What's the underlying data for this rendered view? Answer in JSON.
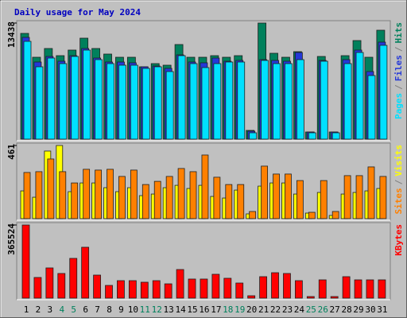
{
  "legend_separator": "/",
  "chart_data": [
    {
      "type": "bar",
      "title": "Daily usage for May 2024",
      "ylim": [
        0,
        13438
      ],
      "yticks": [
        13438
      ],
      "series": [
        {
          "name": "Hits",
          "color": "#00805c",
          "values": [
            12241,
            9480,
            10493,
            9664,
            10309,
            11689,
            10493,
            9848,
            9480,
            9480,
            8376,
            8744,
            8560,
            10953,
            9480,
            9480,
            9664,
            9480,
            9664,
            1012,
            13438,
            9940,
            9480,
            10125,
            828,
            9572,
            828,
            9664,
            11413,
            9480,
            12609
          ]
        },
        {
          "name": "Files",
          "color": "#2438d8",
          "values": [
            11781,
            8928,
            9572,
            9020,
            9664,
            10493,
            9388,
            8928,
            8928,
            8836,
            8376,
            8468,
            8192,
            9756,
            8928,
            8836,
            9388,
            9020,
            9112,
            920,
            9204,
            9112,
            9020,
            10033,
            828,
            9112,
            828,
            9204,
            10309,
            7824,
            11229
          ]
        },
        {
          "name": "Pages",
          "color": "#00e0ff",
          "values": [
            11320,
            8376,
            9388,
            8744,
            9572,
            10309,
            9204,
            8744,
            8560,
            8560,
            8192,
            8376,
            7824,
            9664,
            8744,
            8284,
            8744,
            8928,
            8928,
            736,
            9112,
            8744,
            8744,
            9204,
            736,
            9020,
            736,
            8744,
            10033,
            7363,
            10861
          ]
        }
      ]
    },
    {
      "type": "bar",
      "ylim": [
        0,
        461
      ],
      "yticks": [
        461
      ],
      "series": [
        {
          "name": "Visits",
          "color": "#ffff00",
          "values": [
            175,
            135,
            426,
            461,
            170,
            225,
            225,
            195,
            170,
            195,
            145,
            155,
            195,
            210,
            190,
            210,
            140,
            130,
            180,
            30,
            205,
            225,
            225,
            155,
            35,
            165,
            20,
            155,
            165,
            175,
            190
          ]
        },
        {
          "name": "Sites",
          "color": "#ff8000",
          "values": [
            291,
            296,
            376,
            296,
            225,
            311,
            306,
            311,
            266,
            306,
            215,
            235,
            266,
            316,
            296,
            401,
            261,
            215,
            215,
            45,
            331,
            281,
            281,
            240,
            40,
            240,
            45,
            271,
            271,
            326,
            266
          ]
        }
      ]
    },
    {
      "type": "bar",
      "ylim": [
        0,
        365524
      ],
      "yticks": [
        365524
      ],
      "categories": [
        "1",
        "2",
        "3",
        "4",
        "5",
        "6",
        "7",
        "8",
        "9",
        "10",
        "11",
        "12",
        "13",
        "14",
        "15",
        "16",
        "17",
        "18",
        "19",
        "20",
        "21",
        "22",
        "23",
        "24",
        "25",
        "26",
        "27",
        "28",
        "29",
        "30",
        "31"
      ],
      "category_colors": [
        "#000000",
        "#000000",
        "#000000",
        "#00805c",
        "#00805c",
        "#000000",
        "#000000",
        "#000000",
        "#000000",
        "#000000",
        "#00805c",
        "#00805c",
        "#000000",
        "#000000",
        "#000000",
        "#000000",
        "#000000",
        "#00805c",
        "#00805c",
        "#000000",
        "#000000",
        "#000000",
        "#000000",
        "#000000",
        "#00805c",
        "#00805c",
        "#000000",
        "#000000",
        "#000000",
        "#000000",
        "#000000"
      ],
      "series": [
        {
          "name": "KBytes",
          "color": "#ff0000",
          "values": [
            365524,
            103300,
            151000,
            123200,
            198700,
            254300,
            115200,
            63600,
            87400,
            87400,
            79500,
            87400,
            71500,
            143000,
            95400,
            95400,
            119200,
            99300,
            75500,
            11900,
            107300,
            127100,
            123200,
            87400,
            7900,
            91400,
            7900,
            107300,
            91400,
            91400,
            91400
          ]
        }
      ]
    }
  ]
}
